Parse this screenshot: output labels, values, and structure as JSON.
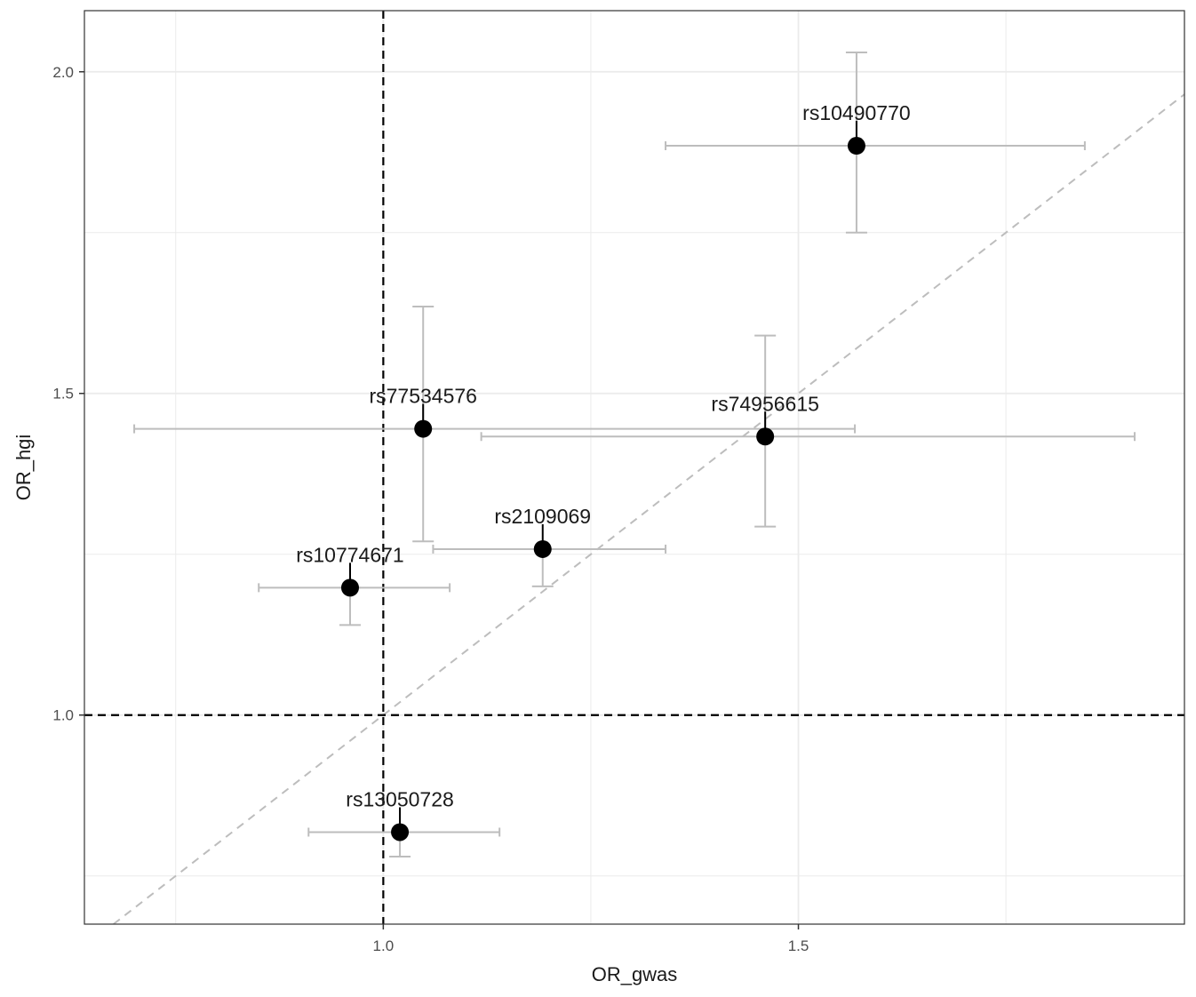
{
  "chart_data": {
    "type": "scatter",
    "xlabel": "OR_gwas",
    "ylabel": "OR_hgi",
    "xlim": [
      0.64,
      1.965
    ],
    "ylim": [
      0.675,
      2.095
    ],
    "x_ticks": [
      1.0,
      1.5
    ],
    "x_tick_labels": [
      "1.0",
      "1.5"
    ],
    "x_minor_gridlines": [
      0.75,
      1.25,
      1.75
    ],
    "y_ticks": [
      1.0,
      1.5,
      2.0
    ],
    "y_tick_labels": [
      "1.0",
      "1.5",
      "2.0"
    ],
    "y_minor_gridlines": [
      0.75,
      1.25,
      1.75
    ],
    "grid": true,
    "reference_lines": {
      "vertical_x": 1.0,
      "horizontal_y": 1.0,
      "identity_diagonal": true
    },
    "colors": {
      "point": "#000000",
      "error_bar": "#bdbdbd",
      "reference_line": "#000000",
      "diagonal": "#bdbdbd",
      "grid": "#ebebeb",
      "panel_border": "#333333"
    },
    "points": [
      {
        "label": "rs10490770",
        "x": 1.57,
        "y": 1.885,
        "x_low": 1.34,
        "x_high": 1.845,
        "y_low": 1.75,
        "y_high": 2.03
      },
      {
        "label": "rs77534576",
        "x": 1.048,
        "y": 1.445,
        "x_low": 0.7,
        "x_high": 1.568,
        "y_low": 1.27,
        "y_high": 1.635
      },
      {
        "label": "rs74956615",
        "x": 1.46,
        "y": 1.433,
        "x_low": 1.118,
        "x_high": 1.905,
        "y_low": 1.293,
        "y_high": 1.59
      },
      {
        "label": "rs2109069",
        "x": 1.192,
        "y": 1.258,
        "x_low": 1.06,
        "x_high": 1.34,
        "y_low": 1.2,
        "y_high": 1.258
      },
      {
        "label": "rs10774671",
        "x": 0.96,
        "y": 1.198,
        "x_low": 0.85,
        "x_high": 1.08,
        "y_low": 1.14,
        "y_high": 1.198
      },
      {
        "label": "rs13050728",
        "x": 1.02,
        "y": 0.818,
        "x_low": 0.91,
        "x_high": 1.14,
        "y_low": 0.78,
        "y_high": 0.818
      }
    ]
  }
}
